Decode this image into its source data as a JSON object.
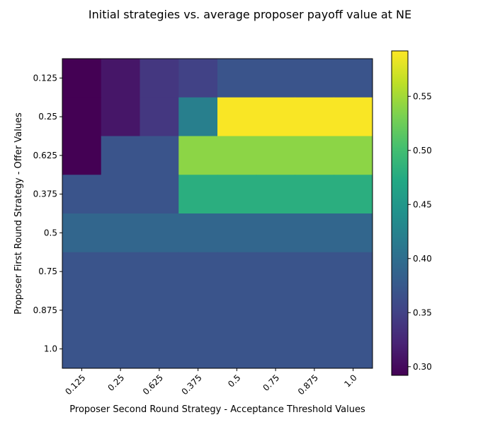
{
  "chart_data": {
    "type": "heatmap",
    "title": "Initial strategies vs. average proposer payoff value at NE",
    "xlabel": "Proposer Second Round Strategy - Acceptance Threshold Values",
    "ylabel": "Proposer First Round Strategy - Offer Values",
    "x_categories": [
      "0.125",
      "0.25",
      "0.625",
      "0.375",
      "0.5",
      "0.75",
      "0.875",
      "1.0"
    ],
    "y_categories": [
      "0.125",
      "0.25",
      "0.625",
      "0.375",
      "0.5",
      "0.75",
      "0.875",
      "1.0"
    ],
    "values": [
      [
        0.29,
        0.31,
        0.34,
        0.35,
        0.37,
        0.37,
        0.37,
        0.37
      ],
      [
        0.29,
        0.31,
        0.34,
        0.42,
        0.59,
        0.59,
        0.59,
        0.59
      ],
      [
        0.29,
        0.37,
        0.37,
        0.54,
        0.54,
        0.54,
        0.54,
        0.54
      ],
      [
        0.37,
        0.37,
        0.37,
        0.48,
        0.48,
        0.48,
        0.48,
        0.48
      ],
      [
        0.39,
        0.39,
        0.39,
        0.39,
        0.39,
        0.39,
        0.39,
        0.39
      ],
      [
        0.37,
        0.37,
        0.37,
        0.37,
        0.37,
        0.37,
        0.37,
        0.37
      ],
      [
        0.37,
        0.37,
        0.37,
        0.37,
        0.37,
        0.37,
        0.37,
        0.37
      ],
      [
        0.37,
        0.37,
        0.37,
        0.37,
        0.37,
        0.37,
        0.37,
        0.37
      ]
    ],
    "colormap": "viridis",
    "colorbar": {
      "vmin": 0.292,
      "vmax": 0.592,
      "ticks": [
        0.3,
        0.35,
        0.4,
        0.45,
        0.5,
        0.55
      ],
      "tick_labels": [
        "0.30",
        "0.35",
        "0.40",
        "0.45",
        "0.50",
        "0.55"
      ]
    },
    "grid": false
  }
}
